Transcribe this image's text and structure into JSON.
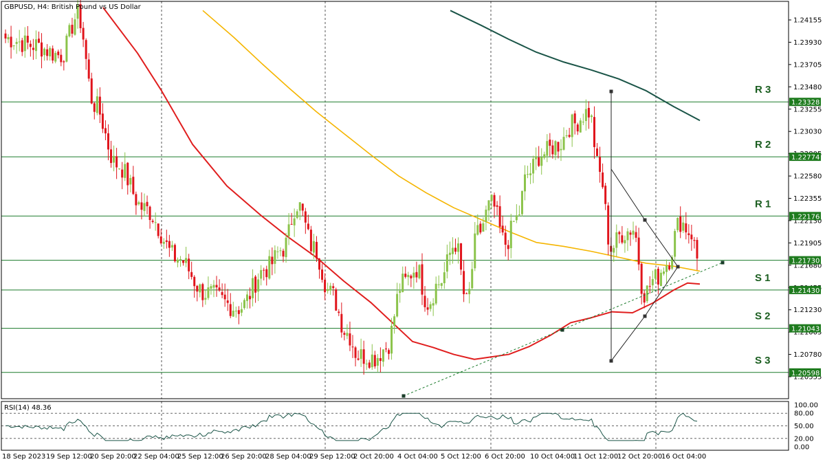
{
  "header": {
    "symbol": "GBPUSD, H4:  British Pound vs US Dollar"
  },
  "colors": {
    "bull": "#8bc34a",
    "bear": "#e0141b",
    "ma_fast": "#e01e1e",
    "ma_mid": "#f5b500",
    "ma_slow": "#1a5447",
    "level_line": "#1a7a2a",
    "level_label_bg": "#1e7b1e",
    "grid": "#555555",
    "frame": "#000000",
    "rsi_line": "#1a5447",
    "trendline": "#1a7a2a"
  },
  "chart_data": [
    {
      "type": "line",
      "title": "GBPUSD, H4:  British Pound vs US Dollar",
      "ylim": [
        1.2043,
        1.2425
      ],
      "y_ticks": [
        "1.24155",
        "1.23930",
        "1.23705",
        "1.23480",
        "1.23255",
        "1.23030",
        "1.22805",
        "1.22580",
        "1.22355",
        "1.22130",
        "1.21905",
        "1.21680",
        "1.21455",
        "1.21230",
        "1.21005",
        "1.20780",
        "1.20555"
      ],
      "x_labels": [
        "18 Sep 2023",
        "19 Sep 12:00",
        "20 Sep 20:00",
        "22 Sep 04:00",
        "25 Sep 12:00",
        "26 Sep 20:00",
        "28 Sep 04:00",
        "29 Sep 12:00",
        "2 Oct 20:00",
        "4 Oct 04:00",
        "5 Oct 12:00",
        "6 Oct 20:00",
        "10 Oct 04:00",
        "11 Oct 12:00",
        "12 Oct 20:00",
        "16 Oct 04:00"
      ],
      "levels": [
        {
          "name": "R 3",
          "price": 1.23328,
          "label": "1.23328"
        },
        {
          "name": "R 2",
          "price": 1.22774,
          "label": "1.22774"
        },
        {
          "name": "R 1",
          "price": 1.22176,
          "label": "1.22176"
        },
        {
          "name": "",
          "price": 1.2173,
          "label": "1.21730"
        },
        {
          "name": "S 1",
          "price": 1.2143,
          "label": "1.21430"
        },
        {
          "name": "S 2",
          "price": 1.21043,
          "label": "1.21043"
        },
        {
          "name": "S 3",
          "price": 1.20598,
          "label": "1.20598"
        }
      ],
      "anchors": [
        [
          0,
          1.2397
        ],
        [
          10,
          1.239
        ],
        [
          20,
          1.238
        ],
        [
          26,
          1.242
        ],
        [
          32,
          1.233
        ],
        [
          40,
          1.227
        ],
        [
          50,
          1.2225
        ],
        [
          62,
          1.2175
        ],
        [
          72,
          1.214
        ],
        [
          84,
          1.2125
        ],
        [
          94,
          1.2165
        ],
        [
          100,
          1.2185
        ],
        [
          105,
          1.223
        ],
        [
          111,
          1.2185
        ],
        [
          117,
          1.214
        ],
        [
          123,
          1.21
        ],
        [
          127,
          1.2077
        ],
        [
          133,
          1.2075
        ],
        [
          137,
          1.2085
        ],
        [
          143,
          1.215
        ],
        [
          148,
          1.2165
        ],
        [
          152,
          1.213
        ],
        [
          156,
          1.215
        ],
        [
          162,
          1.219
        ],
        [
          166,
          1.213
        ],
        [
          170,
          1.22
        ],
        [
          175,
          1.223
        ],
        [
          180,
          1.219
        ],
        [
          184,
          1.2215
        ],
        [
          188,
          1.226
        ],
        [
          193,
          1.228
        ],
        [
          199,
          1.229
        ],
        [
          204,
          1.231
        ],
        [
          210,
          1.2323
        ],
        [
          214,
          1.226
        ],
        [
          218,
          1.2185
        ],
        [
          222,
          1.22
        ],
        [
          226,
          1.2205
        ],
        [
          230,
          1.214
        ],
        [
          234,
          1.2155
        ],
        [
          238,
          1.217
        ],
        [
          243,
          1.2212
        ],
        [
          247,
          1.22
        ],
        [
          249,
          1.2175
        ]
      ]
    },
    {
      "type": "line",
      "title": "RSI(14) 48.36",
      "ylim": [
        0,
        100
      ],
      "y_ticks": [
        "100.00",
        "80.00",
        "50.00",
        "20.00",
        "0.00"
      ],
      "levels": [
        80,
        50,
        20
      ]
    }
  ]
}
